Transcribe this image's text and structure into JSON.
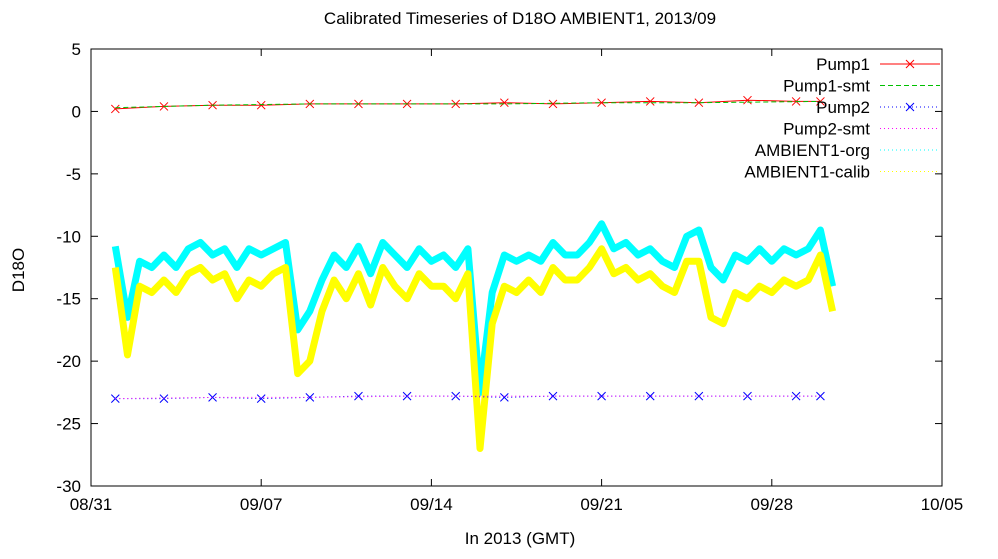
{
  "chart_data": {
    "type": "line",
    "title": "Calibrated Timeseries of D18O AMBIENT1, 2013/09",
    "xlabel": "In 2013 (GMT)",
    "ylabel": "D18O",
    "x_type": "date",
    "xlim": [
      "2013-08-31",
      "2013-10-05"
    ],
    "ylim": [
      -30,
      5
    ],
    "x_ticks": [
      {
        "label": "08/31",
        "date": "2013-08-31"
      },
      {
        "label": "09/07",
        "date": "2013-09-07"
      },
      {
        "label": "09/14",
        "date": "2013-09-14"
      },
      {
        "label": "09/21",
        "date": "2013-09-21"
      },
      {
        "label": "09/28",
        "date": "2013-09-28"
      },
      {
        "label": "10/05",
        "date": "2013-10-05"
      }
    ],
    "y_ticks": [
      5,
      0,
      -5,
      -10,
      -15,
      -20,
      -25,
      -30
    ],
    "grid": false,
    "legend_position": "top-right",
    "series": [
      {
        "name": "Pump1",
        "color": "#ff0000",
        "style": "line-cross",
        "x": [
          "2013-09-01",
          "2013-09-03",
          "2013-09-05",
          "2013-09-07",
          "2013-09-09",
          "2013-09-11",
          "2013-09-13",
          "2013-09-15",
          "2013-09-17",
          "2013-09-19",
          "2013-09-21",
          "2013-09-23",
          "2013-09-25",
          "2013-09-27",
          "2013-09-29",
          "2013-09-30"
        ],
        "y": [
          0.2,
          0.4,
          0.5,
          0.5,
          0.6,
          0.6,
          0.6,
          0.6,
          0.7,
          0.6,
          0.7,
          0.8,
          0.7,
          0.9,
          0.8,
          0.8
        ]
      },
      {
        "name": "Pump1-smt",
        "color": "#00c000",
        "style": "dashed",
        "x": [
          "2013-09-01",
          "2013-09-05",
          "2013-09-09",
          "2013-09-13",
          "2013-09-17",
          "2013-09-21",
          "2013-09-25",
          "2013-09-30"
        ],
        "y": [
          0.3,
          0.5,
          0.6,
          0.6,
          0.6,
          0.7,
          0.7,
          0.8
        ]
      },
      {
        "name": "Pump2",
        "color": "#0000ff",
        "style": "dotted-cross",
        "x": [
          "2013-09-01",
          "2013-09-03",
          "2013-09-05",
          "2013-09-07",
          "2013-09-09",
          "2013-09-11",
          "2013-09-13",
          "2013-09-15",
          "2013-09-17",
          "2013-09-19",
          "2013-09-21",
          "2013-09-23",
          "2013-09-25",
          "2013-09-27",
          "2013-09-29",
          "2013-09-30"
        ],
        "y": [
          -23.0,
          -23.0,
          -22.9,
          -23.0,
          -22.9,
          -22.8,
          -22.8,
          -22.8,
          -22.9,
          -22.8,
          -22.8,
          -22.8,
          -22.8,
          -22.8,
          -22.8,
          -22.8
        ]
      },
      {
        "name": "Pump2-smt",
        "color": "#ff00ff",
        "style": "dotted",
        "x": [
          "2013-09-01",
          "2013-09-05",
          "2013-09-09",
          "2013-09-13",
          "2013-09-17",
          "2013-09-21",
          "2013-09-25",
          "2013-09-30"
        ],
        "y": [
          -23.0,
          -22.9,
          -22.9,
          -22.8,
          -22.8,
          -22.8,
          -22.8,
          -22.8
        ]
      },
      {
        "name": "AMBIENT1-org",
        "color": "#00ffff",
        "style": "thick",
        "x": [
          "2013-09-01",
          "2013-09-01 12:00",
          "2013-09-02",
          "2013-09-02 12:00",
          "2013-09-03",
          "2013-09-03 12:00",
          "2013-09-04",
          "2013-09-04 12:00",
          "2013-09-05",
          "2013-09-05 12:00",
          "2013-09-06",
          "2013-09-06 12:00",
          "2013-09-07",
          "2013-09-07 12:00",
          "2013-09-08",
          "2013-09-08 12:00",
          "2013-09-09",
          "2013-09-09 12:00",
          "2013-09-10",
          "2013-09-10 12:00",
          "2013-09-11",
          "2013-09-11 12:00",
          "2013-09-12",
          "2013-09-12 12:00",
          "2013-09-13",
          "2013-09-13 12:00",
          "2013-09-14",
          "2013-09-14 12:00",
          "2013-09-15",
          "2013-09-15 12:00",
          "2013-09-16",
          "2013-09-16 12:00",
          "2013-09-17",
          "2013-09-17 12:00",
          "2013-09-18",
          "2013-09-18 12:00",
          "2013-09-19",
          "2013-09-19 12:00",
          "2013-09-20",
          "2013-09-20 12:00",
          "2013-09-21",
          "2013-09-21 12:00",
          "2013-09-22",
          "2013-09-22 12:00",
          "2013-09-23",
          "2013-09-23 12:00",
          "2013-09-24",
          "2013-09-24 12:00",
          "2013-09-25",
          "2013-09-25 12:00",
          "2013-09-26",
          "2013-09-26 12:00",
          "2013-09-27",
          "2013-09-27 12:00",
          "2013-09-28",
          "2013-09-28 12:00",
          "2013-09-29",
          "2013-09-29 12:00",
          "2013-09-30",
          "2013-09-30 12:00"
        ],
        "y": [
          -10.8,
          -16.5,
          -12.0,
          -12.5,
          -11.5,
          -12.5,
          -11.0,
          -10.5,
          -11.5,
          -11.0,
          -12.5,
          -11.0,
          -11.5,
          -11.0,
          -10.5,
          -17.5,
          -16.0,
          -13.5,
          -11.5,
          -12.5,
          -10.8,
          -13.0,
          -10.5,
          -11.5,
          -12.5,
          -11.0,
          -12.0,
          -11.5,
          -12.5,
          -11.0,
          -22.5,
          -14.5,
          -11.5,
          -12.0,
          -11.5,
          -12.0,
          -10.5,
          -11.5,
          -11.5,
          -10.5,
          -9.0,
          -11.0,
          -10.5,
          -11.5,
          -11.0,
          -12.0,
          -12.5,
          -10.0,
          -9.5,
          -12.5,
          -13.5,
          -11.5,
          -12.0,
          -11.0,
          -12.0,
          -11.0,
          -11.5,
          -11.0,
          -9.5,
          -14.0
        ]
      },
      {
        "name": "AMBIENT1-calib",
        "color": "#ffff00",
        "style": "thick",
        "x": [
          "2013-09-01",
          "2013-09-01 12:00",
          "2013-09-02",
          "2013-09-02 12:00",
          "2013-09-03",
          "2013-09-03 12:00",
          "2013-09-04",
          "2013-09-04 12:00",
          "2013-09-05",
          "2013-09-05 12:00",
          "2013-09-06",
          "2013-09-06 12:00",
          "2013-09-07",
          "2013-09-07 12:00",
          "2013-09-08",
          "2013-09-08 12:00",
          "2013-09-09",
          "2013-09-09 12:00",
          "2013-09-10",
          "2013-09-10 12:00",
          "2013-09-11",
          "2013-09-11 12:00",
          "2013-09-12",
          "2013-09-12 12:00",
          "2013-09-13",
          "2013-09-13 12:00",
          "2013-09-14",
          "2013-09-14 12:00",
          "2013-09-15",
          "2013-09-15 12:00",
          "2013-09-16",
          "2013-09-16 12:00",
          "2013-09-17",
          "2013-09-17 12:00",
          "2013-09-18",
          "2013-09-18 12:00",
          "2013-09-19",
          "2013-09-19 12:00",
          "2013-09-20",
          "2013-09-20 12:00",
          "2013-09-21",
          "2013-09-21 12:00",
          "2013-09-22",
          "2013-09-22 12:00",
          "2013-09-23",
          "2013-09-23 12:00",
          "2013-09-24",
          "2013-09-24 12:00",
          "2013-09-25",
          "2013-09-25 12:00",
          "2013-09-26",
          "2013-09-26 12:00",
          "2013-09-27",
          "2013-09-27 12:00",
          "2013-09-28",
          "2013-09-28 12:00",
          "2013-09-29",
          "2013-09-29 12:00",
          "2013-09-30",
          "2013-09-30 12:00"
        ],
        "y": [
          -12.5,
          -19.5,
          -14.0,
          -14.5,
          -13.5,
          -14.5,
          -13.0,
          -12.5,
          -13.5,
          -13.0,
          -15.0,
          -13.5,
          -14.0,
          -13.0,
          -12.5,
          -21.0,
          -20.0,
          -16.0,
          -13.5,
          -15.0,
          -13.0,
          -15.5,
          -12.5,
          -14.0,
          -15.0,
          -13.0,
          -14.0,
          -14.0,
          -15.0,
          -13.0,
          -27.0,
          -17.0,
          -14.0,
          -14.5,
          -13.5,
          -14.5,
          -12.5,
          -13.5,
          -13.5,
          -12.5,
          -11.0,
          -13.0,
          -12.5,
          -13.5,
          -13.0,
          -14.0,
          -14.5,
          -12.0,
          -12.0,
          -16.5,
          -17.0,
          -14.5,
          -15.0,
          -14.0,
          -14.5,
          -13.5,
          -14.0,
          -13.5,
          -11.5,
          -16.0
        ]
      }
    ]
  }
}
